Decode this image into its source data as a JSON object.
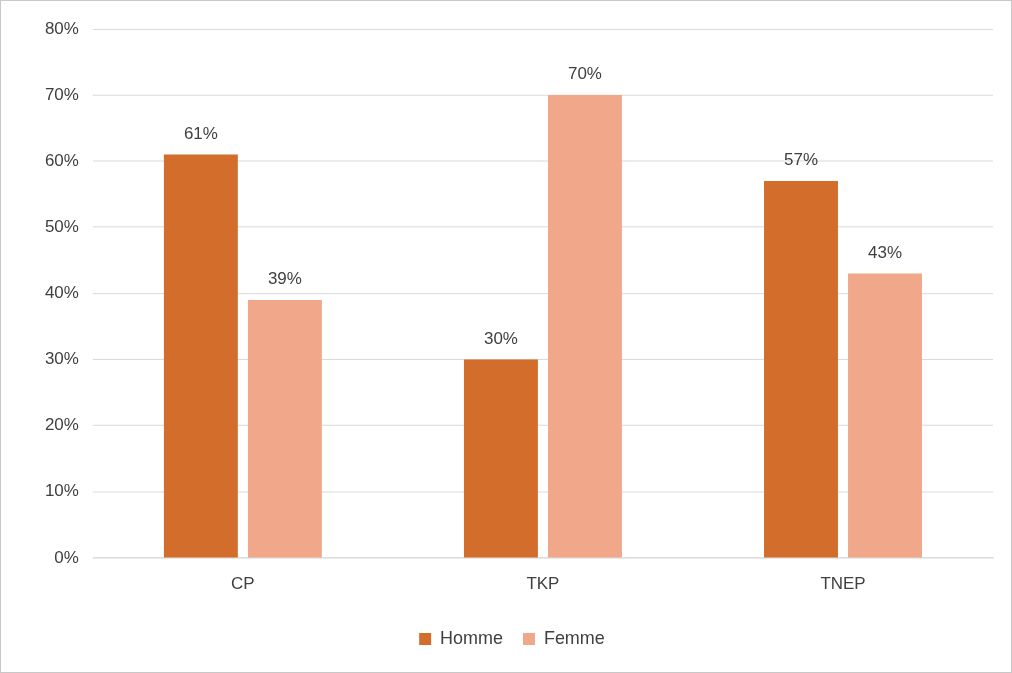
{
  "chart_data": {
    "type": "bar",
    "categories": [
      "CP",
      "TKP",
      "TNEP"
    ],
    "series": [
      {
        "name": "Homme",
        "color": "#d26d2b",
        "values": [
          61,
          30,
          57
        ],
        "value_labels": [
          "61%",
          "30%",
          "57%"
        ]
      },
      {
        "name": "Femme",
        "color": "#f0a78a",
        "values": [
          39,
          70,
          43
        ],
        "value_labels": [
          "39%",
          "70%",
          "43%"
        ]
      }
    ],
    "ylim": [
      0,
      80
    ],
    "yticks": [
      {
        "value": 0,
        "label": "0%"
      },
      {
        "value": 10,
        "label": "10%"
      },
      {
        "value": 20,
        "label": "20%"
      },
      {
        "value": 30,
        "label": "30%"
      },
      {
        "value": 40,
        "label": "40%"
      },
      {
        "value": 50,
        "label": "50%"
      },
      {
        "value": 60,
        "label": "60%"
      },
      {
        "value": 70,
        "label": "70%"
      },
      {
        "value": 80,
        "label": "80%"
      }
    ],
    "grid": "y",
    "legend": "bottom"
  }
}
